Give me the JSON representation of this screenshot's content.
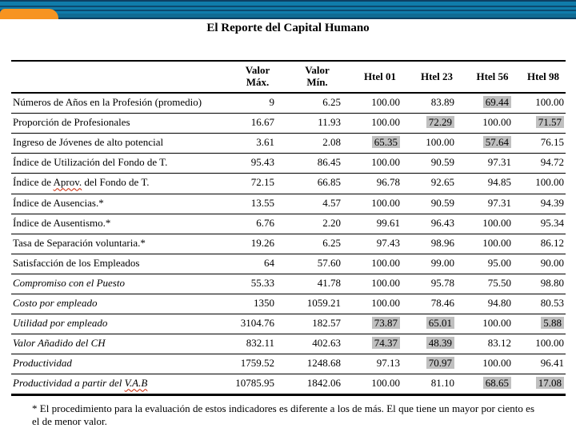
{
  "slide": {
    "title": "El Reporte del Capital Humano",
    "footnote": "* El procedimiento para la evaluación de estos indicadores es diferente a los de más. El que tiene un mayor por ciento es el de menor valor."
  },
  "theme": {
    "banner_blue": "#107CAB",
    "banner_dark": "#0C4A70",
    "banner_navy": "#0D4063",
    "banner_teal": "#106B93",
    "accent_orange": "#F79421",
    "highlight_gray": "#C0C0C0",
    "misspell_red": "#CC2200"
  },
  "chart_data": {
    "type": "table",
    "title": "El Reporte del Capital Humano",
    "columns": [
      "",
      "Valor\nMáx.",
      "Valor\nMín.",
      "Htel 01",
      "Htel 23",
      "Htel 56",
      "Htel 98"
    ],
    "rows": [
      {
        "label": "Números de Años en la Profesión (promedio)",
        "values": [
          "9",
          "6.25",
          "100.00",
          "83.89",
          "69.44",
          "100.00"
        ],
        "hl": [
          4
        ],
        "italic": false,
        "wrap": true
      },
      {
        "label": "Proporción de Profesionales",
        "values": [
          "16.67",
          "11.93",
          "100.00",
          "72.29",
          "100.00",
          "71.57"
        ],
        "hl": [
          3,
          5
        ],
        "italic": false
      },
      {
        "label": "Ingreso de Jóvenes de alto potencial",
        "values": [
          "3.61",
          "2.08",
          "65.35",
          "100.00",
          "57.64",
          "76.15"
        ],
        "hl": [
          2,
          4
        ],
        "italic": false
      },
      {
        "label": "Índice de Utilización del Fondo de T.",
        "values": [
          "95.43",
          "86.45",
          "100.00",
          "90.59",
          "97.31",
          "94.72"
        ],
        "hl": [],
        "italic": false
      },
      {
        "label": "Índice de Aprov. del Fondo de T.",
        "wavy": "Aprov.",
        "values": [
          "72.15",
          "66.85",
          "96.78",
          "92.65",
          "94.85",
          "100.00"
        ],
        "hl": [],
        "italic": false
      },
      {
        "label": "Índice de Ausencias.*",
        "values": [
          "13.55",
          "4.57",
          "100.00",
          "90.59",
          "97.31",
          "94.39"
        ],
        "hl": [],
        "italic": false
      },
      {
        "label": "Índice de Ausentismo.*",
        "values": [
          "6.76",
          "2.20",
          "99.61",
          "96.43",
          "100.00",
          "95.34"
        ],
        "hl": [],
        "italic": false
      },
      {
        "label": "Tasa de Separación voluntaria.*",
        "values": [
          "19.26",
          "6.25",
          "97.43",
          "98.96",
          "100.00",
          "86.12"
        ],
        "hl": [],
        "italic": false
      },
      {
        "label": "Satisfacción de los Empleados",
        "values": [
          "64",
          "57.60",
          "100.00",
          "99.00",
          "95.00",
          "90.00"
        ],
        "hl": [],
        "italic": false
      },
      {
        "label": "Compromiso con el Puesto",
        "values": [
          "55.33",
          "41.78",
          "100.00",
          "95.78",
          "75.50",
          "98.80"
        ],
        "hl": [],
        "italic": true
      },
      {
        "label": "Costo por empleado",
        "values": [
          "1350",
          "1059.21",
          "100.00",
          "78.46",
          "94.80",
          "80.53"
        ],
        "hl": [],
        "italic": true
      },
      {
        "label": "Utilidad por empleado",
        "values": [
          "3104.76",
          "182.57",
          "73.87",
          "65.01",
          "100.00",
          "5.88"
        ],
        "hl": [
          2,
          3,
          5
        ],
        "italic": true
      },
      {
        "label": "Valor Añadido del CH",
        "values": [
          "832.11",
          "402.63",
          "74.37",
          "48.39",
          "83.12",
          "100.00"
        ],
        "hl": [
          2,
          3
        ],
        "italic": true
      },
      {
        "label": "Productividad",
        "values": [
          "1759.52",
          "1248.68",
          "97.13",
          "70.97",
          "100.00",
          "96.41"
        ],
        "hl": [
          3
        ],
        "italic": true
      },
      {
        "label": "Productividad a partir del V.A.B",
        "wavy": "V.A.B",
        "values": [
          "10785.95",
          "1842.06",
          "100.00",
          "81.10",
          "68.65",
          "17.08"
        ],
        "hl": [
          4,
          5
        ],
        "italic": true
      }
    ],
    "footnote": "* El procedimiento para la evaluación de estos indicadores es diferente a los de más. El que tiene un mayor por ciento es el de menor valor."
  }
}
